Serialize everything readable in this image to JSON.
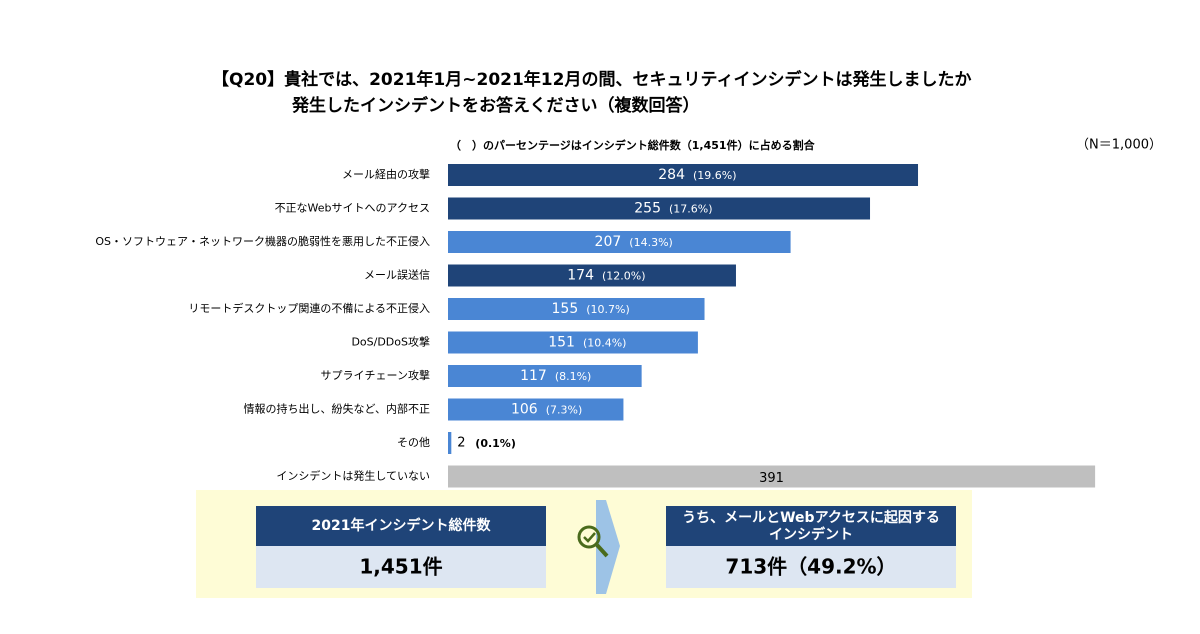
{
  "chart_data": {
    "type": "barh",
    "title": "【Q20】貴社では、2021年1月~2021年12月の間、セキュリティインシデントは発生しましたか",
    "subtitle": "発生したインシデントをお答えください（複数回答）",
    "note": "（　）のパーセンテージはインシデント総件数（1,451件）に占める割合",
    "sample": "（N＝1,000）",
    "categories": [
      "メール経由の攻撃",
      "不正なWebサイトへのアクセス",
      "OS・ソフトウェア・ネットワーク機器の脆弱性を悪用した不正侵入",
      "メール誤送信",
      "リモートデスクトップ関連の不備による不正侵入",
      "DoS/DDoS攻撃",
      "サプライチェーン攻撃",
      "情報の持ち出し、紛失など、内部不正",
      "その他",
      "インシデントは発生していない"
    ],
    "values": [
      284,
      255,
      207,
      174,
      155,
      151,
      117,
      106,
      2,
      391
    ],
    "share_labels": [
      "(19.6%)",
      "(17.6%)",
      "(14.3%)",
      "(12.0%)",
      "(10.7%)",
      "(10.4%)",
      "(8.1%)",
      "(7.3%)",
      "(0.1%)",
      null
    ],
    "colors": [
      "#1f4478",
      "#1f4478",
      "#4a86d4",
      "#1f4478",
      "#4a86d4",
      "#4a86d4",
      "#4a86d4",
      "#4a86d4",
      "#4a86d4",
      "#bfbfbf"
    ],
    "xlim": [
      0,
      400
    ]
  },
  "summary": {
    "total": {
      "heading": "2021年インシデント総件数",
      "value": "1,451件"
    },
    "mail_web": {
      "heading_lines": [
        "うち、メールとWebアクセスに起因する",
        "インシデント"
      ],
      "value": "713件（49.2%）"
    }
  }
}
